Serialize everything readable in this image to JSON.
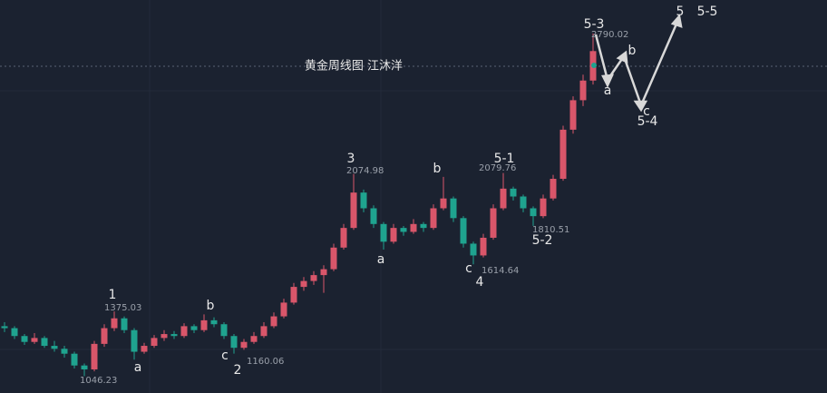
{
  "chart_data": {
    "type": "candlestick",
    "title": "黄金周线图 江沐洋",
    "up_color": "#d9566a",
    "down_color": "#1fa38f",
    "ylim": [
      960,
      2960
    ],
    "candles": [
      [
        1300,
        1320,
        1270,
        1290
      ],
      [
        1290,
        1300,
        1235,
        1250
      ],
      [
        1250,
        1260,
        1205,
        1220
      ],
      [
        1220,
        1265,
        1210,
        1240
      ],
      [
        1240,
        1250,
        1190,
        1200
      ],
      [
        1200,
        1225,
        1170,
        1185
      ],
      [
        1185,
        1200,
        1140,
        1160
      ],
      [
        1160,
        1170,
        1085,
        1100
      ],
      [
        1100,
        1110,
        1046.23,
        1080
      ],
      [
        1080,
        1225,
        1070,
        1210
      ],
      [
        1210,
        1310,
        1195,
        1290
      ],
      [
        1290,
        1375.03,
        1275,
        1340
      ],
      [
        1340,
        1350,
        1265,
        1280
      ],
      [
        1280,
        1290,
        1130,
        1170
      ],
      [
        1170,
        1215,
        1160,
        1200
      ],
      [
        1200,
        1255,
        1190,
        1240
      ],
      [
        1240,
        1280,
        1225,
        1260
      ],
      [
        1260,
        1275,
        1235,
        1250
      ],
      [
        1250,
        1315,
        1240,
        1300
      ],
      [
        1300,
        1310,
        1265,
        1280
      ],
      [
        1280,
        1360,
        1270,
        1330
      ],
      [
        1330,
        1345,
        1295,
        1310
      ],
      [
        1310,
        1320,
        1235,
        1250
      ],
      [
        1250,
        1260,
        1160.06,
        1190
      ],
      [
        1190,
        1235,
        1180,
        1220
      ],
      [
        1220,
        1270,
        1210,
        1250
      ],
      [
        1250,
        1320,
        1240,
        1300
      ],
      [
        1300,
        1370,
        1290,
        1350
      ],
      [
        1350,
        1440,
        1340,
        1420
      ],
      [
        1420,
        1520,
        1410,
        1500
      ],
      [
        1500,
        1550,
        1480,
        1530
      ],
      [
        1530,
        1580,
        1510,
        1560
      ],
      [
        1560,
        1610,
        1470,
        1590
      ],
      [
        1590,
        1720,
        1580,
        1700
      ],
      [
        1700,
        1820,
        1690,
        1800
      ],
      [
        1800,
        2074.98,
        1790,
        1980
      ],
      [
        1980,
        1995,
        1880,
        1900
      ],
      [
        1900,
        1915,
        1800,
        1820
      ],
      [
        1820,
        1830,
        1690,
        1730
      ],
      [
        1730,
        1820,
        1720,
        1800
      ],
      [
        1800,
        1810,
        1760,
        1780
      ],
      [
        1780,
        1845,
        1770,
        1820
      ],
      [
        1820,
        1830,
        1780,
        1800
      ],
      [
        1800,
        1920,
        1790,
        1900
      ],
      [
        1900,
        2060,
        1890,
        1950
      ],
      [
        1950,
        1960,
        1830,
        1850
      ],
      [
        1850,
        1860,
        1700,
        1720
      ],
      [
        1720,
        1730,
        1614.64,
        1660
      ],
      [
        1660,
        1770,
        1650,
        1750
      ],
      [
        1750,
        1920,
        1740,
        1900
      ],
      [
        1900,
        2079.76,
        1890,
        2000
      ],
      [
        2000,
        2010,
        1940,
        1960
      ],
      [
        1960,
        1970,
        1880,
        1900
      ],
      [
        1900,
        1910,
        1810.51,
        1860
      ],
      [
        1860,
        1970,
        1850,
        1950
      ],
      [
        1950,
        2070,
        1940,
        2050
      ],
      [
        2050,
        2320,
        2040,
        2300
      ],
      [
        2300,
        2470,
        2280,
        2450
      ],
      [
        2450,
        2580,
        2420,
        2550
      ],
      [
        2550,
        2790.02,
        2530,
        2700
      ]
    ],
    "wave_labels": [
      "1",
      "a",
      "b",
      "c",
      "2",
      "3",
      "a",
      "b",
      "c",
      "4",
      "5-1",
      "5-2",
      "5-3",
      "a",
      "b",
      "c",
      "5-4",
      "5",
      "5-5"
    ]
  }
}
